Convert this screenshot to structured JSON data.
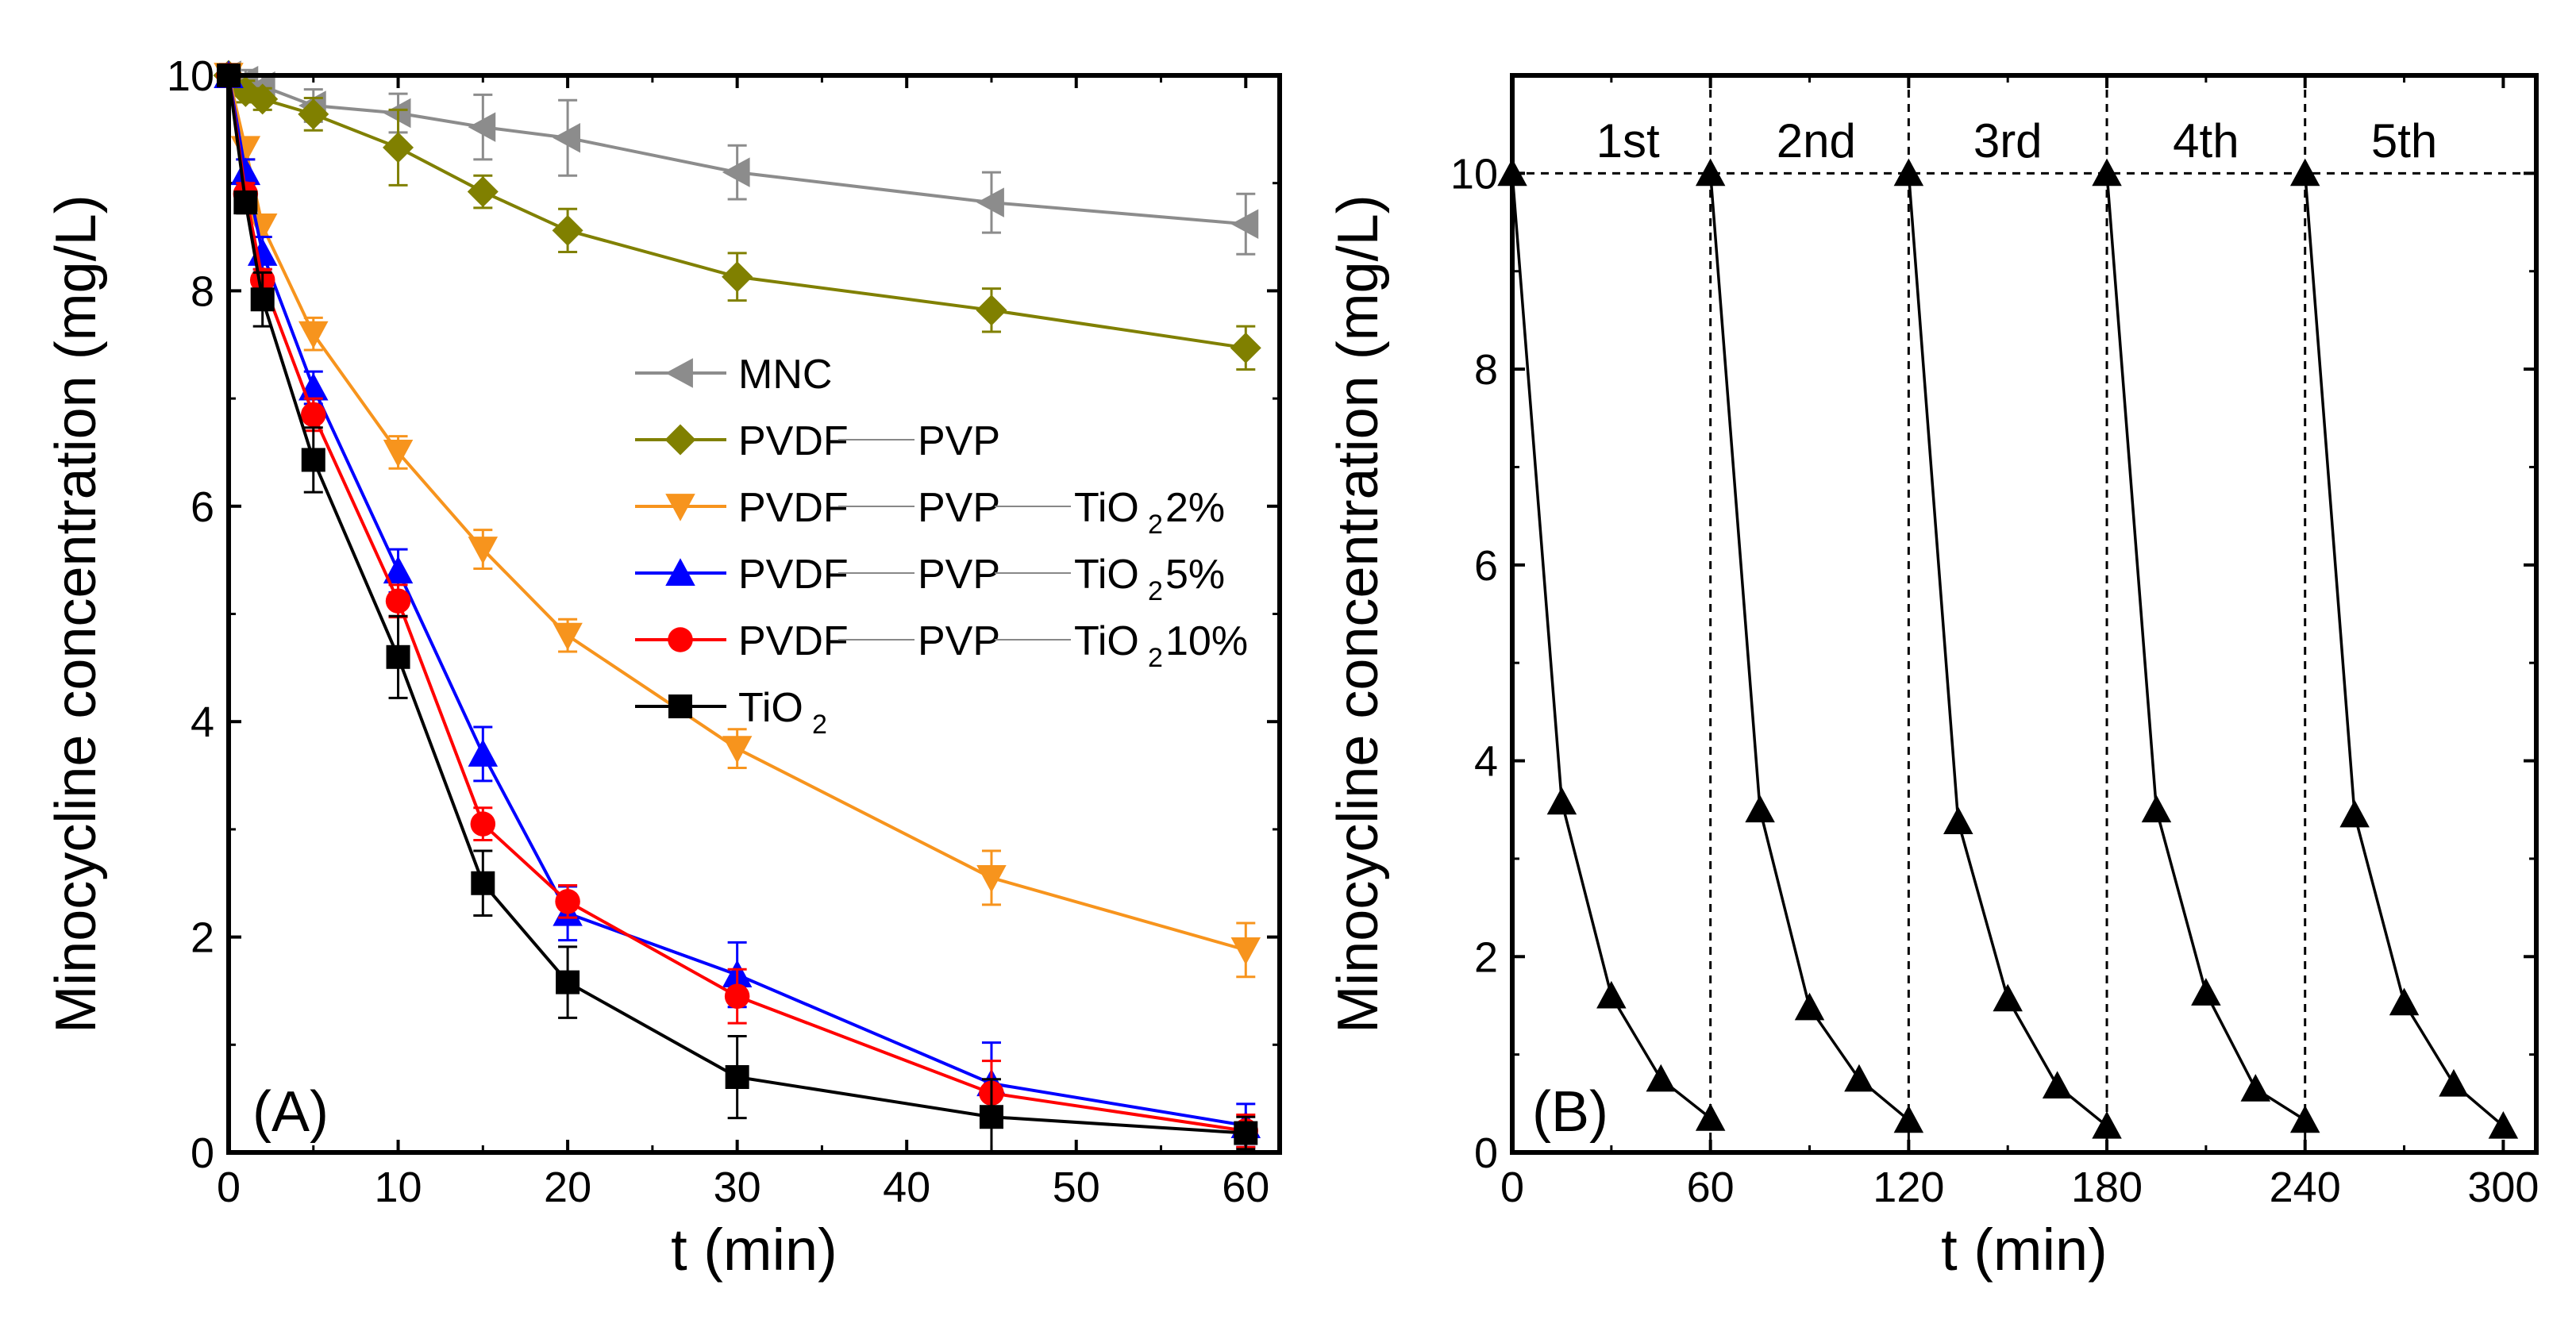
{
  "chart_data": [
    {
      "type": "line",
      "panel_label": "(A)",
      "title": "",
      "xlabel": "t (min)",
      "ylabel": "Minocycline concentration (mg/L)",
      "xlim": [
        0,
        62
      ],
      "ylim": [
        0,
        10
      ],
      "xticks": [
        0,
        10,
        20,
        30,
        40,
        50,
        60
      ],
      "yticks": [
        0,
        2,
        4,
        6,
        8,
        10
      ],
      "legend_position": "center",
      "series": [
        {
          "name": "MNC",
          "label_parts": [
            "MNC"
          ],
          "color": "#8c8c8c",
          "marker": "triangle-left",
          "x": [
            0,
            1,
            2,
            5,
            10,
            15,
            20,
            30,
            45,
            60
          ],
          "y": [
            10.0,
            9.95,
            9.9,
            9.72,
            9.65,
            9.52,
            9.42,
            9.1,
            8.82,
            8.62
          ],
          "err": [
            0.1,
            0.1,
            0.1,
            0.15,
            0.18,
            0.3,
            0.35,
            0.25,
            0.28,
            0.28
          ]
        },
        {
          "name": "PVDF—PVP",
          "label_parts": [
            "PVDF",
            "PVP"
          ],
          "color": "#808000",
          "marker": "diamond",
          "x": [
            0,
            1,
            2,
            5,
            10,
            15,
            20,
            30,
            45,
            60
          ],
          "y": [
            10.0,
            9.85,
            9.78,
            9.64,
            9.33,
            8.92,
            8.56,
            8.13,
            7.82,
            7.47
          ],
          "err": [
            0.1,
            0.1,
            0.1,
            0.15,
            0.35,
            0.15,
            0.2,
            0.22,
            0.2,
            0.2
          ]
        },
        {
          "name": "PVDF—PVP—TiO2 2%",
          "label_parts": [
            "PVDF",
            "PVP",
            "TiO",
            "2",
            " 2%"
          ],
          "color": "#f7941d",
          "marker": "triangle-down",
          "x": [
            0,
            1,
            2,
            5,
            10,
            15,
            20,
            30,
            45,
            60
          ],
          "y": [
            10.0,
            9.32,
            8.6,
            7.6,
            6.5,
            5.6,
            4.8,
            3.75,
            2.55,
            1.88
          ],
          "err": [
            0.1,
            0.1,
            0.1,
            0.15,
            0.15,
            0.18,
            0.15,
            0.18,
            0.25,
            0.25
          ]
        },
        {
          "name": "PVDF—PVP—TiO2 5%",
          "label_parts": [
            "PVDF",
            "PVP",
            "TiO",
            "2",
            " 5%"
          ],
          "color": "#0000ff",
          "marker": "triangle-up",
          "x": [
            0,
            1,
            2,
            5,
            10,
            15,
            20,
            30,
            45,
            60
          ],
          "y": [
            10.0,
            9.1,
            8.35,
            7.1,
            5.4,
            3.7,
            2.22,
            1.65,
            0.64,
            0.25
          ],
          "err": [
            0.1,
            0.12,
            0.15,
            0.15,
            0.2,
            0.25,
            0.25,
            0.3,
            0.38,
            0.2
          ]
        },
        {
          "name": "PVDF—PVP—TiO2 10%",
          "label_parts": [
            "PVDF",
            "PVP",
            "TiO",
            "2",
            " 10%"
          ],
          "color": "#ff0000",
          "marker": "circle",
          "x": [
            0,
            1,
            2,
            5,
            10,
            15,
            20,
            30,
            45,
            60
          ],
          "y": [
            10.0,
            8.9,
            8.1,
            6.85,
            5.12,
            3.05,
            2.33,
            1.45,
            0.55,
            0.2
          ],
          "err": [
            0.1,
            0.1,
            0.1,
            0.15,
            0.15,
            0.15,
            0.15,
            0.25,
            0.3,
            0.15
          ]
        },
        {
          "name": "TiO2",
          "label_parts": [
            "TiO",
            "2"
          ],
          "color": "#000000",
          "marker": "square",
          "x": [
            0,
            1,
            2,
            5,
            10,
            15,
            20,
            30,
            45,
            60
          ],
          "y": [
            10.0,
            8.82,
            7.92,
            6.43,
            4.6,
            2.5,
            1.58,
            0.7,
            0.33,
            0.18
          ],
          "err": [
            0.1,
            0.1,
            0.25,
            0.3,
            0.38,
            0.3,
            0.33,
            0.38,
            0.35,
            0.15
          ]
        }
      ]
    },
    {
      "type": "line",
      "panel_label": "(B)",
      "title": "",
      "xlabel": "t (min)",
      "ylabel": "Minocycline concentration (mg/L)",
      "xlim": [
        0,
        310
      ],
      "ylim": [
        0,
        11
      ],
      "xticks": [
        0,
        60,
        120,
        180,
        240,
        300
      ],
      "yticks": [
        0,
        2,
        4,
        6,
        8,
        10
      ],
      "reference_line_y": 10,
      "cycle_boundaries_x": [
        60,
        120,
        180,
        240
      ],
      "cycle_labels": [
        {
          "text": "1st",
          "x": 35
        },
        {
          "text": "2nd",
          "x": 92
        },
        {
          "text": "3rd",
          "x": 150
        },
        {
          "text": "4th",
          "x": 210
        },
        {
          "text": "5th",
          "x": 270
        }
      ],
      "series": [
        {
          "name": "cycles",
          "color": "#000000",
          "marker": "triangle-up",
          "segments": [
            {
              "x": [
                0,
                15,
                30,
                45,
                60
              ],
              "y": [
                10.0,
                3.58,
                1.6,
                0.75,
                0.35
              ]
            },
            {
              "x": [
                60,
                75,
                90,
                105,
                120
              ],
              "y": [
                10.0,
                3.5,
                1.48,
                0.75,
                0.33
              ]
            },
            {
              "x": [
                120,
                135,
                150,
                165,
                180
              ],
              "y": [
                10.0,
                3.38,
                1.57,
                0.68,
                0.27
              ]
            },
            {
              "x": [
                180,
                195,
                210,
                225,
                240
              ],
              "y": [
                10.0,
                3.5,
                1.63,
                0.65,
                0.33
              ]
            },
            {
              "x": [
                240,
                255,
                270,
                285,
                300
              ],
              "y": [
                10.0,
                3.45,
                1.53,
                0.7,
                0.27
              ]
            }
          ]
        }
      ]
    }
  ]
}
